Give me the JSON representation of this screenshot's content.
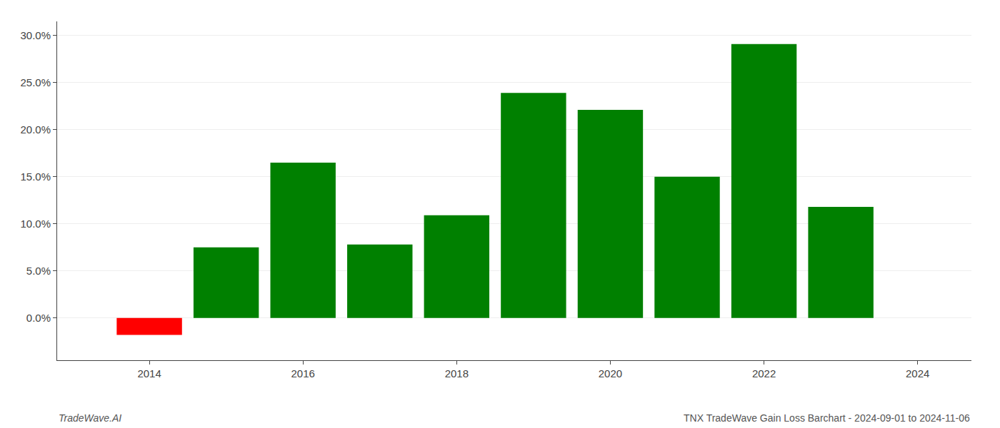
{
  "chart_data": {
    "type": "bar",
    "title": "TNX TradeWave Gain Loss Barchart - 2024-09-01 to 2024-11-06",
    "annotations": [
      "TradeWave.AI"
    ],
    "x": [
      2014,
      2015,
      2016,
      2017,
      2018,
      2019,
      2020,
      2021,
      2022,
      2023
    ],
    "values": [
      -0.018,
      0.075,
      0.165,
      0.078,
      0.109,
      0.239,
      0.221,
      0.15,
      0.291,
      0.118
    ],
    "colors": [
      "#ff0000",
      "#008000",
      "#008000",
      "#008000",
      "#008000",
      "#008000",
      "#008000",
      "#008000",
      "#008000",
      "#008000"
    ],
    "xlim": [
      2012.8,
      2024.7
    ],
    "xticks": [
      2014,
      2016,
      2018,
      2020,
      2022,
      2024
    ],
    "ylim": [
      -0.045,
      0.315
    ],
    "yticks": [
      {
        "value": 0.0,
        "label": "0.0%"
      },
      {
        "value": 0.05,
        "label": "5.0%"
      },
      {
        "value": 0.1,
        "label": "10.0%"
      },
      {
        "value": 0.15,
        "label": "15.0%"
      },
      {
        "value": 0.2,
        "label": "20.0%"
      },
      {
        "value": 0.25,
        "label": "25.0%"
      },
      {
        "value": 0.3,
        "label": "30.0%"
      }
    ],
    "grid": true
  }
}
